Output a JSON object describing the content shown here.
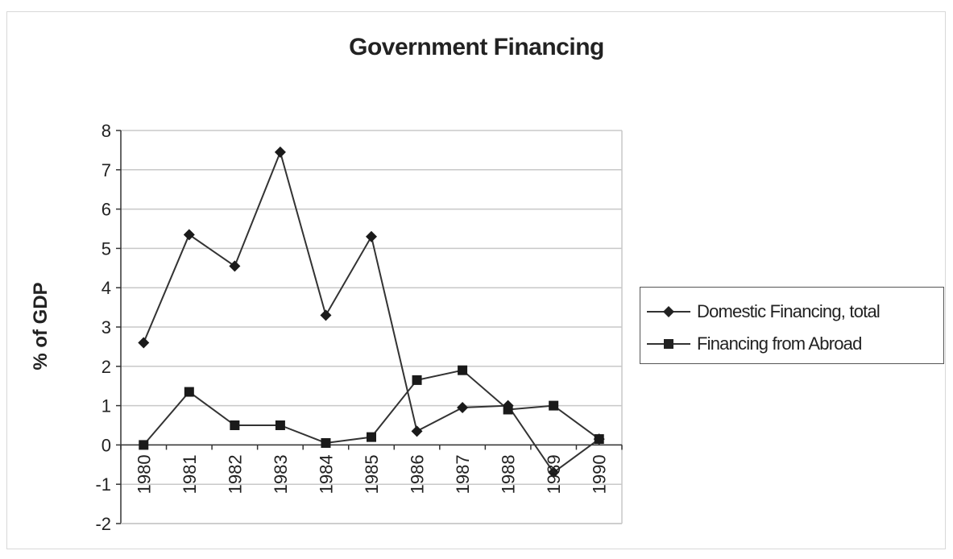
{
  "chart_data": {
    "type": "line",
    "title": "Government Financing",
    "ylabel": "% of GDP",
    "xlabel": "",
    "x": [
      "1980",
      "1981",
      "1982",
      "1983",
      "1984",
      "1985",
      "1986",
      "1987",
      "1988",
      "1989",
      "1990"
    ],
    "ylim": [
      -2,
      8
    ],
    "yticks": [
      "-2",
      "-1",
      "0",
      "1",
      "2",
      "3",
      "4",
      "5",
      "6",
      "7",
      "8"
    ],
    "grid": true,
    "legend_position": "right",
    "series": [
      {
        "name": "Domestic Financing, total",
        "marker": "diamond",
        "values": [
          2.6,
          5.35,
          4.55,
          7.45,
          3.3,
          5.3,
          0.35,
          0.95,
          1.0,
          -0.7,
          0.15
        ]
      },
      {
        "name": "Financing from Abroad",
        "marker": "square",
        "values": [
          0.0,
          1.35,
          0.5,
          0.5,
          0.05,
          0.2,
          1.65,
          1.9,
          0.9,
          1.0,
          0.15
        ]
      }
    ],
    "colors": {
      "line": "#333333",
      "grid": "#c8c8c8",
      "axis": "#333333"
    }
  }
}
